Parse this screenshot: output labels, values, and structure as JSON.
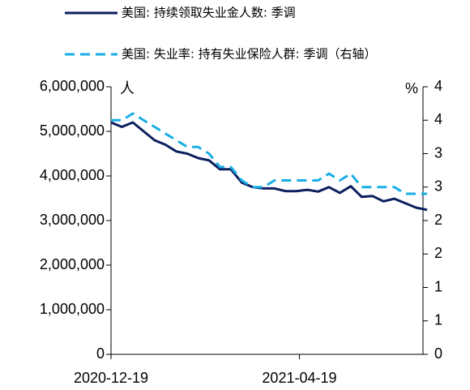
{
  "chart_data": {
    "type": "line",
    "annotations": [
      "人",
      "%"
    ],
    "x": [
      "2020-12-19",
      "2020-12-26",
      "2021-01-02",
      "2021-01-09",
      "2021-01-16",
      "2021-01-23",
      "2021-01-30",
      "2021-02-06",
      "2021-02-13",
      "2021-02-20",
      "2021-02-27",
      "2021-03-06",
      "2021-03-13",
      "2021-03-20",
      "2021-03-27",
      "2021-04-03",
      "2021-04-10",
      "2021-04-17",
      "2021-04-24",
      "2021-05-01",
      "2021-05-08",
      "2021-05-15",
      "2021-05-22",
      "2021-05-29",
      "2021-06-05",
      "2021-06-12",
      "2021-06-19",
      "2021-06-26",
      "2021-07-03",
      "2021-07-10"
    ],
    "xlim": [
      "2020-12-19",
      "2021-07-10"
    ],
    "xticks": [
      "2020-12-19",
      "2021-04-19"
    ],
    "series": [
      {
        "name": "美国: 持续领取失业金人数: 季调",
        "color": "#0c1f5e",
        "axis": "y",
        "values": [
          5200000,
          5100000,
          5200000,
          5000000,
          4800000,
          4700000,
          4550000,
          4500000,
          4400000,
          4350000,
          4150000,
          4150000,
          3850000,
          3750000,
          3720000,
          3720000,
          3660000,
          3660000,
          3690000,
          3650000,
          3750000,
          3620000,
          3770000,
          3530000,
          3550000,
          3430000,
          3490000,
          3390000,
          3290000,
          3240000
        ]
      },
      {
        "name": "美国: 失业率: 持有失业保险人群: 季调（右轴）",
        "color": "#1aaee6",
        "axis": "y2",
        "values": [
          3.5,
          3.5,
          3.6,
          3.5,
          3.4,
          3.3,
          3.2,
          3.1,
          3.1,
          3.0,
          2.8,
          2.8,
          2.6,
          2.5,
          2.5,
          2.6,
          2.6,
          2.6,
          2.6,
          2.6,
          2.7,
          2.6,
          2.7,
          2.5,
          2.5,
          2.5,
          2.5,
          2.4,
          2.4,
          2.4
        ]
      }
    ],
    "ylim": [
      0,
      6000000
    ],
    "yticks": [
      0,
      {
        "value": 1000000,
        "label": "1,000,000"
      },
      {
        "value": 2000000,
        "label": "2,000,000"
      },
      {
        "value": 3000000,
        "label": "3,000,000"
      },
      {
        "value": 4000000,
        "label": "4,000,000"
      },
      {
        "value": 5000000,
        "label": "5,000,000"
      },
      {
        "value": 6000000,
        "label": "6,000,000"
      }
    ],
    "y2lim": [
      0,
      4
    ],
    "y2ticks": [
      0,
      {
        "value": 0.5,
        "label": "1"
      },
      1,
      {
        "value": 1.5,
        "label": "2"
      },
      2,
      {
        "value": 2.5,
        "label": "3"
      },
      3,
      {
        "value": 3.5,
        "label": "4"
      },
      4
    ],
    "grid": false
  }
}
